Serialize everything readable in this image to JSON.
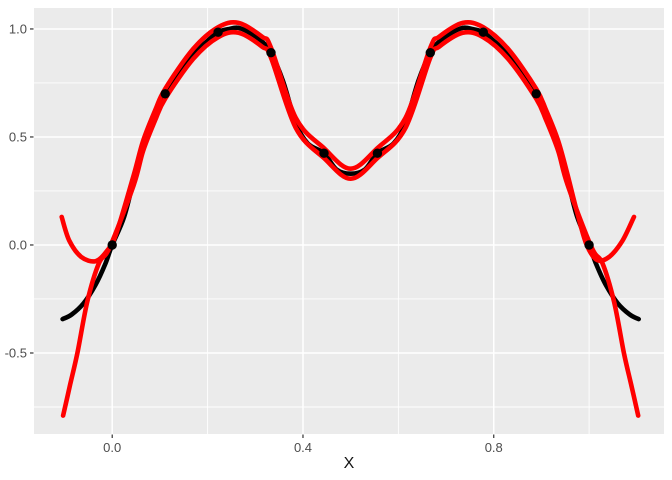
{
  "chart_data": {
    "type": "line",
    "title": "",
    "xlabel": "X",
    "ylabel": "",
    "panel_bg": "#EBEBEB",
    "grid_color": "#FFFFFF",
    "tick_color": "#333333",
    "axis_text_color": "#4D4D4D",
    "axis_title_color": "#141414",
    "xlim": [
      -0.164,
      1.157
    ],
    "ylim": [
      -0.875,
      1.097
    ],
    "x_major_ticks": [
      0.0,
      0.4,
      0.8
    ],
    "x_tick_labels": [
      "0.0",
      "0.4",
      "0.8"
    ],
    "x_minor_ticks": [
      0.2,
      0.6,
      1.0
    ],
    "y_major_ticks": [
      -0.5,
      0.0,
      0.5,
      1.0
    ],
    "y_tick_labels": [
      "-0.5",
      "0.0",
      "0.5",
      "1.0"
    ],
    "y_minor_ticks": [
      -0.75,
      -0.25,
      0.25,
      0.75
    ],
    "legend": "none",
    "grid": "on",
    "series": [
      {
        "name": "black-fit",
        "color": "#000000",
        "width": 4.6,
        "points": [
          [
            -0.104,
            -0.343
          ],
          [
            -0.085,
            -0.322
          ],
          [
            -0.06,
            -0.27
          ],
          [
            -0.035,
            -0.185
          ],
          [
            -0.015,
            -0.09
          ],
          [
            0.0,
            0.0
          ],
          [
            0.025,
            0.13
          ],
          [
            0.045,
            0.3
          ],
          [
            0.065,
            0.46
          ],
          [
            0.09,
            0.6
          ],
          [
            0.111,
            0.7
          ],
          [
            0.14,
            0.8
          ],
          [
            0.17,
            0.885
          ],
          [
            0.2,
            0.945
          ],
          [
            0.222,
            0.985
          ],
          [
            0.245,
            1.0
          ],
          [
            0.265,
            1.005
          ],
          [
            0.29,
            0.98
          ],
          [
            0.315,
            0.94
          ],
          [
            0.333,
            0.89
          ],
          [
            0.358,
            0.76
          ],
          [
            0.385,
            0.565
          ],
          [
            0.41,
            0.47
          ],
          [
            0.444,
            0.425
          ],
          [
            0.47,
            0.35
          ],
          [
            0.5,
            0.33
          ],
          [
            0.53,
            0.35
          ],
          [
            0.556,
            0.425
          ],
          [
            0.59,
            0.47
          ],
          [
            0.615,
            0.565
          ],
          [
            0.642,
            0.76
          ],
          [
            0.667,
            0.89
          ],
          [
            0.685,
            0.94
          ],
          [
            0.71,
            0.98
          ],
          [
            0.735,
            1.005
          ],
          [
            0.755,
            1.0
          ],
          [
            0.778,
            0.985
          ],
          [
            0.8,
            0.945
          ],
          [
            0.83,
            0.885
          ],
          [
            0.86,
            0.8
          ],
          [
            0.889,
            0.7
          ],
          [
            0.91,
            0.6
          ],
          [
            0.935,
            0.46
          ],
          [
            0.955,
            0.3
          ],
          [
            0.975,
            0.13
          ],
          [
            1.0,
            0.0
          ],
          [
            1.015,
            -0.09
          ],
          [
            1.035,
            -0.185
          ],
          [
            1.06,
            -0.27
          ],
          [
            1.085,
            -0.322
          ],
          [
            1.104,
            -0.343
          ]
        ]
      },
      {
        "name": "red-fit-a",
        "color": "#FF0000",
        "width": 4.6,
        "points": [
          [
            -0.106,
            0.13
          ],
          [
            -0.09,
            0.02
          ],
          [
            -0.065,
            -0.055
          ],
          [
            -0.035,
            -0.075
          ],
          [
            -0.012,
            -0.03
          ],
          [
            0.008,
            0.05
          ],
          [
            0.045,
            0.323
          ],
          [
            0.065,
            0.483
          ],
          [
            0.09,
            0.623
          ],
          [
            0.111,
            0.723
          ],
          [
            0.17,
            0.908
          ],
          [
            0.222,
            1.008
          ],
          [
            0.265,
            1.028
          ],
          [
            0.315,
            0.963
          ],
          [
            0.333,
            0.913
          ],
          [
            0.385,
            0.588
          ],
          [
            0.444,
            0.448
          ],
          [
            0.5,
            0.353
          ],
          [
            0.556,
            0.448
          ],
          [
            0.615,
            0.588
          ],
          [
            0.667,
            0.913
          ],
          [
            0.685,
            0.963
          ],
          [
            0.735,
            1.028
          ],
          [
            0.778,
            1.008
          ],
          [
            0.83,
            0.908
          ],
          [
            0.889,
            0.723
          ],
          [
            0.91,
            0.623
          ],
          [
            0.935,
            0.483
          ],
          [
            0.955,
            0.323
          ],
          [
            0.975,
            0.15
          ],
          [
            0.995,
            0.0
          ],
          [
            1.017,
            -0.07
          ],
          [
            1.042,
            -0.055
          ],
          [
            1.07,
            0.02
          ],
          [
            1.094,
            0.13
          ]
        ]
      },
      {
        "name": "red-fit-b",
        "color": "#FF0000",
        "width": 4.6,
        "points": [
          [
            -0.103,
            -0.79
          ],
          [
            -0.088,
            -0.645
          ],
          [
            -0.073,
            -0.5
          ],
          [
            -0.052,
            -0.26
          ],
          [
            -0.028,
            -0.085
          ],
          [
            -0.005,
            -0.01
          ],
          [
            0.045,
            0.277
          ],
          [
            0.065,
            0.437
          ],
          [
            0.09,
            0.577
          ],
          [
            0.111,
            0.677
          ],
          [
            0.17,
            0.862
          ],
          [
            0.222,
            0.962
          ],
          [
            0.265,
            0.982
          ],
          [
            0.315,
            0.917
          ],
          [
            0.333,
            0.867
          ],
          [
            0.385,
            0.542
          ],
          [
            0.444,
            0.402
          ],
          [
            0.5,
            0.307
          ],
          [
            0.556,
            0.402
          ],
          [
            0.615,
            0.542
          ],
          [
            0.667,
            0.867
          ],
          [
            0.685,
            0.917
          ],
          [
            0.735,
            0.982
          ],
          [
            0.778,
            0.962
          ],
          [
            0.83,
            0.862
          ],
          [
            0.889,
            0.677
          ],
          [
            0.91,
            0.577
          ],
          [
            0.935,
            0.437
          ],
          [
            0.955,
            0.277
          ],
          [
            1.005,
            -0.01
          ],
          [
            1.028,
            -0.085
          ],
          [
            1.052,
            -0.26
          ],
          [
            1.073,
            -0.5
          ],
          [
            1.088,
            -0.645
          ],
          [
            1.103,
            -0.79
          ]
        ]
      }
    ],
    "scatter": {
      "name": "observations",
      "color": "#000000",
      "radius": 4.7,
      "points": [
        [
          0.0,
          0.0
        ],
        [
          0.111,
          0.7
        ],
        [
          0.222,
          0.985
        ],
        [
          0.333,
          0.89
        ],
        [
          0.444,
          0.425
        ],
        [
          0.556,
          0.425
        ],
        [
          0.667,
          0.89
        ],
        [
          0.778,
          0.985
        ],
        [
          0.889,
          0.7
        ],
        [
          1.0,
          0.0
        ]
      ]
    }
  }
}
